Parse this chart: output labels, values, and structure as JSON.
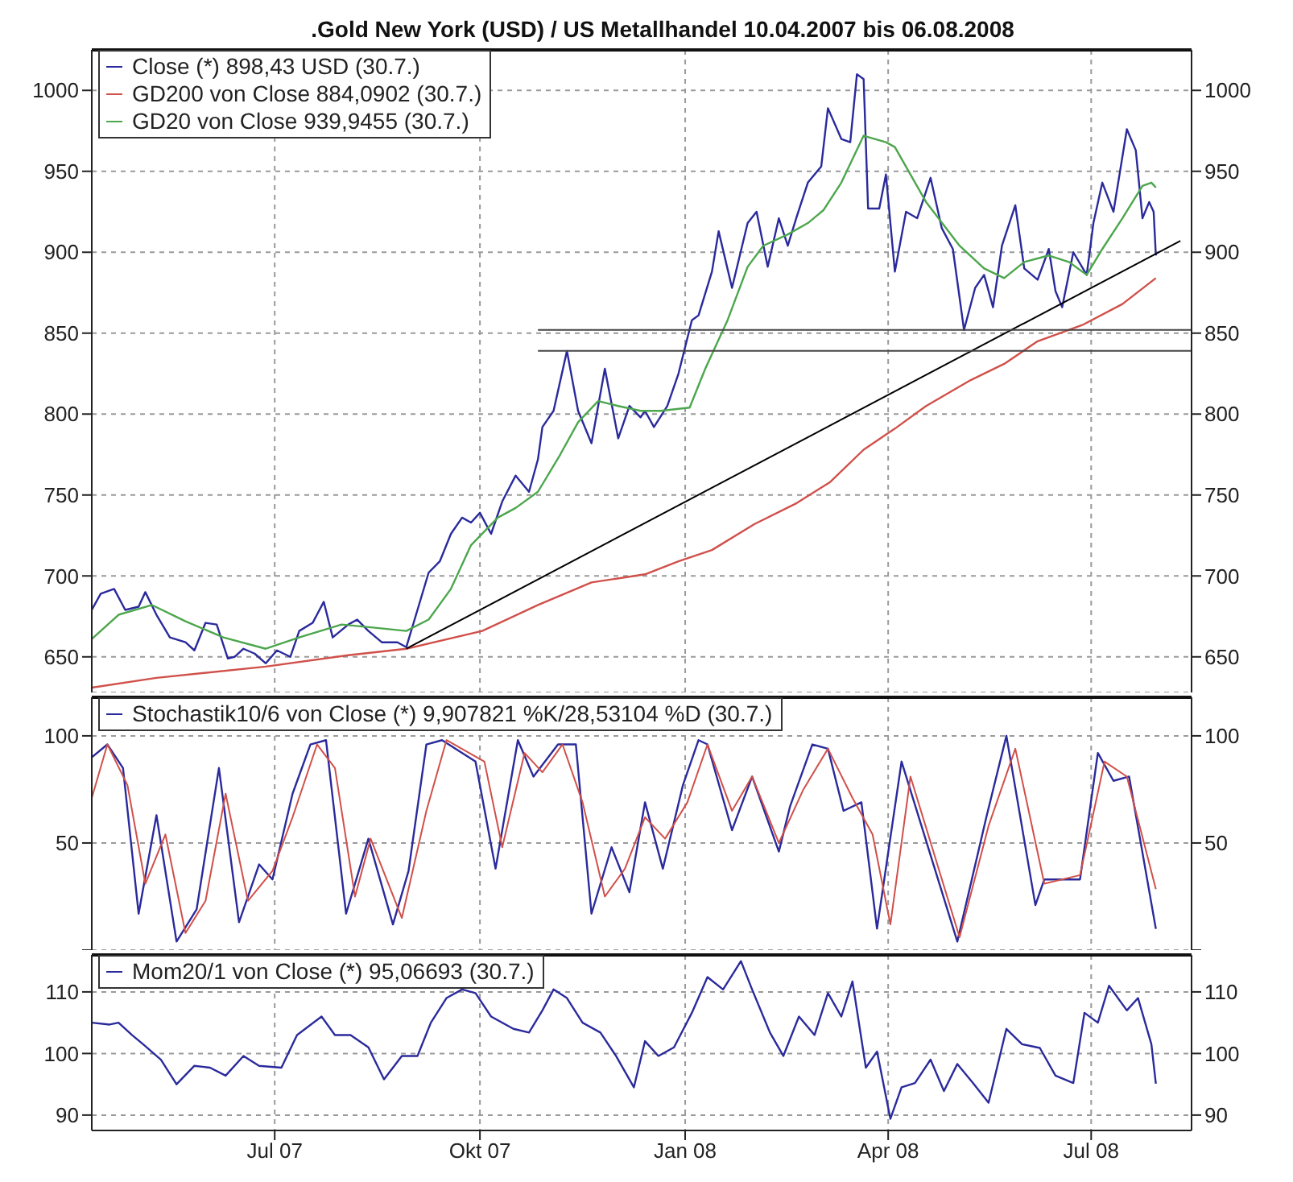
{
  "chart_data": [
    {
      "type": "line",
      "title": ".Gold New York (USD) / US Metallhandel 10.04.2007 bis 06.08.2008",
      "xlim": [
        "2007-04-10",
        "2008-08-15"
      ],
      "xticks": [
        {
          "value": "2007-07-01",
          "label": null
        },
        {
          "value": "2007-10-01",
          "label": null
        },
        {
          "value": "2008-01-01",
          "label": null
        },
        {
          "value": "2008-04-01",
          "label": null
        },
        {
          "value": "2008-07-01",
          "label": null
        }
      ],
      "ylim": [
        628,
        1025
      ],
      "yticks": [
        650,
        700,
        750,
        800,
        850,
        900,
        950,
        1000
      ],
      "y2lim": [
        628,
        1025
      ],
      "y2ticks": [
        650,
        700,
        750,
        800,
        850,
        900,
        950,
        1000
      ],
      "tick_labels": "y",
      "grid": true,
      "legend": "top left",
      "series": [
        {
          "name": "Close (*) 898,43 USD (30.7.)",
          "color": "#2a2a9c",
          "x": [
            "2007-04-10",
            "2007-04-14",
            "2007-04-20",
            "2007-04-25",
            "2007-05-01",
            "2007-05-04",
            "2007-05-09",
            "2007-05-15",
            "2007-05-22",
            "2007-05-26",
            "2007-05-31",
            "2007-06-05",
            "2007-06-10",
            "2007-06-13",
            "2007-06-17",
            "2007-06-22",
            "2007-06-27",
            "2007-07-02",
            "2007-07-08",
            "2007-07-12",
            "2007-07-18",
            "2007-07-23",
            "2007-07-27",
            "2007-08-03",
            "2007-08-07",
            "2007-08-12",
            "2007-08-18",
            "2007-08-25",
            "2007-08-29",
            "2007-09-03",
            "2007-09-08",
            "2007-09-13",
            "2007-09-18",
            "2007-09-23",
            "2007-09-27",
            "2007-10-01",
            "2007-10-06",
            "2007-10-11",
            "2007-10-17",
            "2007-10-23",
            "2007-10-27",
            "2007-10-29",
            "2007-11-03",
            "2007-11-09",
            "2007-11-14",
            "2007-11-20",
            "2007-11-26",
            "2007-12-02",
            "2007-12-07",
            "2007-12-12",
            "2007-12-14",
            "2007-12-18",
            "2007-12-24",
            "2007-12-29",
            "2008-01-04",
            "2008-01-07",
            "2008-01-13",
            "2008-01-16",
            "2008-01-22",
            "2008-01-29",
            "2008-02-02",
            "2008-02-07",
            "2008-02-12",
            "2008-02-16",
            "2008-02-20",
            "2008-02-25",
            "2008-03-02",
            "2008-03-05",
            "2008-03-11",
            "2008-03-15",
            "2008-03-18",
            "2008-03-21",
            "2008-03-23",
            "2008-03-28",
            "2008-03-31",
            "2008-04-04",
            "2008-04-09",
            "2008-04-14",
            "2008-04-20",
            "2008-04-25",
            "2008-04-30",
            "2008-05-05",
            "2008-05-10",
            "2008-05-14",
            "2008-05-18",
            "2008-05-22",
            "2008-05-28",
            "2008-06-01",
            "2008-06-07",
            "2008-06-12",
            "2008-06-15",
            "2008-06-18",
            "2008-06-23",
            "2008-06-29",
            "2008-07-02",
            "2008-07-06",
            "2008-07-11",
            "2008-07-17",
            "2008-07-21",
            "2008-07-24",
            "2008-07-27",
            "2008-07-29",
            "2008-07-30"
          ],
          "values": [
            679,
            689,
            692,
            679,
            681,
            690,
            676,
            662,
            659,
            654,
            671,
            670,
            649,
            650,
            655,
            652,
            646,
            654,
            650,
            666,
            671,
            684,
            662,
            670,
            673,
            666,
            659,
            659,
            656,
            679,
            702,
            709,
            726,
            736,
            733,
            739,
            726,
            746,
            762,
            752,
            772,
            792,
            802,
            839,
            802,
            782,
            828,
            785,
            805,
            798,
            802,
            792,
            805,
            825,
            858,
            861,
            888,
            913,
            878,
            918,
            925,
            891,
            921,
            904,
            922,
            943,
            953,
            989,
            970,
            968,
            1010,
            1007,
            927,
            927,
            948,
            888,
            925,
            921,
            946,
            915,
            902,
            852,
            878,
            886,
            866,
            904,
            929,
            890,
            883,
            902,
            876,
            866,
            900,
            886,
            918,
            943,
            925,
            976,
            963,
            921,
            931,
            925,
            898
          ]
        },
        {
          "name": "GD200 von Close 884,0902 (30.7.)",
          "color": "#d0504a",
          "x": [
            "2007-04-10",
            "2007-05-09",
            "2007-06-27",
            "2007-08-03",
            "2007-08-29",
            "2007-10-02",
            "2007-10-27",
            "2007-11-20",
            "2007-12-14",
            "2007-12-29",
            "2008-01-13",
            "2008-02-01",
            "2008-02-20",
            "2008-03-06",
            "2008-03-21",
            "2008-04-04",
            "2008-04-18",
            "2008-05-08",
            "2008-05-23",
            "2008-06-07",
            "2008-06-27",
            "2008-07-15",
            "2008-07-30"
          ],
          "values": [
            631,
            637,
            644,
            651,
            655,
            666,
            682,
            696,
            701,
            709,
            716,
            732,
            745,
            758,
            778,
            791,
            805,
            821,
            831,
            845,
            855,
            868,
            884
          ]
        },
        {
          "name": "GD20 von Close 939,9455 (30.7.)",
          "color": "#4ca64c",
          "x": [
            "2007-04-10",
            "2007-04-22",
            "2007-05-07",
            "2007-05-22",
            "2007-06-08",
            "2007-06-27",
            "2007-07-12",
            "2007-07-31",
            "2007-08-15",
            "2007-08-29",
            "2007-09-08",
            "2007-09-18",
            "2007-09-27",
            "2007-10-09",
            "2007-10-17",
            "2007-10-27",
            "2007-11-06",
            "2007-11-14",
            "2007-11-23",
            "2007-12-02",
            "2007-12-12",
            "2007-12-21",
            "2008-01-03",
            "2008-01-10",
            "2008-01-20",
            "2008-01-29",
            "2008-02-05",
            "2008-02-16",
            "2008-02-25",
            "2008-03-03",
            "2008-03-11",
            "2008-03-21",
            "2008-03-31",
            "2008-04-04",
            "2008-04-18",
            "2008-05-03",
            "2008-05-14",
            "2008-05-23",
            "2008-06-01",
            "2008-06-12",
            "2008-06-21",
            "2008-06-29",
            "2008-07-06",
            "2008-07-15",
            "2008-07-24",
            "2008-07-28",
            "2008-07-30"
          ],
          "values": [
            661,
            676,
            682,
            672,
            662,
            655,
            662,
            670,
            668,
            666,
            673,
            692,
            719,
            736,
            742,
            752,
            775,
            795,
            808,
            805,
            802,
            802,
            804,
            828,
            858,
            891,
            904,
            911,
            918,
            926,
            943,
            972,
            968,
            965,
            931,
            904,
            890,
            884,
            894,
            898,
            894,
            886,
            902,
            921,
            941,
            943,
            940
          ]
        },
        {
          "type": "line",
          "color": "#000000",
          "x": [
            "2007-08-29",
            "2008-08-10"
          ],
          "values": [
            655,
            907
          ]
        },
        {
          "type": "line",
          "color": "#444444",
          "x": [
            "2007-10-27",
            "2008-08-15"
          ],
          "values": [
            852,
            852
          ]
        },
        {
          "type": "line",
          "color": "#444444",
          "x": [
            "2007-10-27",
            "2008-08-15"
          ],
          "values": [
            839,
            839
          ]
        }
      ]
    },
    {
      "type": "line",
      "xlim": [
        "2007-04-10",
        "2008-08-15"
      ],
      "xticks": [
        {
          "value": "2007-07-01",
          "label": null
        },
        {
          "value": "2007-10-01",
          "label": null
        },
        {
          "value": "2008-01-01",
          "label": null
        },
        {
          "value": "2008-04-01",
          "label": null
        },
        {
          "value": "2008-07-01",
          "label": null
        }
      ],
      "ylim": [
        0,
        118
      ],
      "yticks": [
        {
          "value": 0,
          "label": null
        },
        50,
        100
      ],
      "y2lim": [
        0,
        118
      ],
      "y2ticks": [
        {
          "value": 0,
          "label": null
        },
        50,
        100
      ],
      "tick_labels": "y",
      "grid": true,
      "legend": "top left",
      "series": [
        {
          "name": "Stochastik10/6 von Close (*) 9,907821 %K/28,53104 %D (30.7.)",
          "color": "#2a2a9c",
          "x": [
            "2007-04-10",
            "2007-04-17",
            "2007-04-24",
            "2007-05-01",
            "2007-05-09",
            "2007-05-18",
            "2007-05-27",
            "2007-06-06",
            "2007-06-15",
            "2007-06-24",
            "2007-06-30",
            "2007-07-09",
            "2007-07-17",
            "2007-07-24",
            "2007-08-02",
            "2007-08-12",
            "2007-08-23",
            "2007-08-30",
            "2007-09-07",
            "2007-09-14",
            "2007-09-29",
            "2007-10-08",
            "2007-10-18",
            "2007-10-25",
            "2007-11-05",
            "2007-11-13",
            "2007-11-20",
            "2007-11-29",
            "2007-12-07",
            "2007-12-14",
            "2007-12-22",
            "2007-12-31",
            "2008-01-07",
            "2008-01-11",
            "2008-01-22",
            "2008-01-31",
            "2008-02-12",
            "2008-02-17",
            "2008-02-27",
            "2008-03-05",
            "2008-03-12",
            "2008-03-20",
            "2008-03-27",
            "2008-04-07",
            "2008-05-02",
            "2008-05-15",
            "2008-05-24",
            "2008-06-06",
            "2008-06-10",
            "2008-06-26",
            "2008-07-04",
            "2008-07-11",
            "2008-07-18",
            "2008-07-30"
          ],
          "values": [
            90,
            96,
            85,
            17,
            63,
            4,
            19,
            85,
            13,
            40,
            33,
            73,
            96,
            98,
            17,
            52,
            12,
            37,
            96,
            98,
            88,
            38,
            98,
            81,
            96,
            96,
            17,
            48,
            27,
            69,
            38,
            77,
            98,
            96,
            56,
            81,
            46,
            67,
            96,
            94,
            65,
            69,
            10,
            88,
            4,
            62,
            100,
            21,
            33,
            33,
            92,
            79,
            81,
            9.9
          ]
        },
        {
          "color": "#d0504a",
          "x": [
            "2007-04-10",
            "2007-04-17",
            "2007-04-26",
            "2007-05-04",
            "2007-05-13",
            "2007-05-22",
            "2007-05-31",
            "2007-06-09",
            "2007-06-19",
            "2007-06-30",
            "2007-07-09",
            "2007-07-20",
            "2007-07-28",
            "2007-08-06",
            "2007-08-13",
            "2007-08-27",
            "2007-09-07",
            "2007-09-16",
            "2007-10-03",
            "2007-10-11",
            "2007-10-21",
            "2007-10-29",
            "2007-11-07",
            "2007-11-16",
            "2007-11-26",
            "2007-12-05",
            "2007-12-14",
            "2007-12-23",
            "2008-01-02",
            "2008-01-11",
            "2008-01-22",
            "2008-01-31",
            "2008-02-12",
            "2008-02-23",
            "2008-03-05",
            "2008-03-16",
            "2008-03-25",
            "2008-04-02",
            "2008-04-11",
            "2008-05-03",
            "2008-05-16",
            "2008-05-28",
            "2008-06-10",
            "2008-06-26",
            "2008-07-07",
            "2008-07-17",
            "2008-07-30"
          ],
          "values": [
            71,
            96,
            77,
            31,
            54,
            8,
            23,
            73,
            23,
            37,
            62,
            96,
            85,
            25,
            52,
            15,
            65,
            98,
            88,
            48,
            92,
            83,
            96,
            69,
            25,
            38,
            62,
            52,
            69,
            96,
            65,
            81,
            50,
            75,
            94,
            71,
            54,
            12,
            81,
            6,
            58,
            94,
            31,
            35,
            88,
            81,
            28.5
          ]
        }
      ]
    },
    {
      "type": "line",
      "xlim": [
        "2007-04-10",
        "2008-08-15"
      ],
      "xticks": [
        {
          "value": "2007-07-01",
          "label": "Jul 07"
        },
        {
          "value": "2007-10-01",
          "label": "Okt 07"
        },
        {
          "value": "2008-01-01",
          "label": "Jan 08"
        },
        {
          "value": "2008-04-01",
          "label": "Apr 08"
        },
        {
          "value": "2008-07-01",
          "label": "Jul 08"
        }
      ],
      "ylim": [
        87.5,
        116
      ],
      "yticks": [
        90,
        100,
        110
      ],
      "y2lim": [
        87.5,
        116
      ],
      "y2ticks": [
        90,
        100,
        110
      ],
      "grid": true,
      "legend": "top left",
      "series": [
        {
          "name": "Mom20/1 von Close (*) 95,06693 (30.7.)",
          "color": "#2a2a9c",
          "x": [
            "2007-04-10",
            "2007-04-18",
            "2007-04-22",
            "2007-04-28",
            "2007-05-03",
            "2007-05-11",
            "2007-05-18",
            "2007-05-26",
            "2007-06-02",
            "2007-06-09",
            "2007-06-17",
            "2007-06-24",
            "2007-07-04",
            "2007-07-11",
            "2007-07-22",
            "2007-07-28",
            "2007-08-04",
            "2007-08-12",
            "2007-08-19",
            "2007-08-27",
            "2007-09-03",
            "2007-09-09",
            "2007-09-16",
            "2007-09-23",
            "2007-09-29",
            "2007-10-06",
            "2007-10-16",
            "2007-10-23",
            "2007-10-29",
            "2007-11-03",
            "2007-11-09",
            "2007-11-16",
            "2007-11-24",
            "2007-12-01",
            "2007-12-09",
            "2007-12-14",
            "2007-12-20",
            "2007-12-27",
            "2008-01-04",
            "2008-01-11",
            "2008-01-18",
            "2008-01-26",
            "2008-01-31",
            "2008-02-08",
            "2008-02-14",
            "2008-02-21",
            "2008-02-28",
            "2008-03-05",
            "2008-03-11",
            "2008-03-16",
            "2008-03-22",
            "2008-03-27",
            "2008-04-02",
            "2008-04-07",
            "2008-04-13",
            "2008-04-20",
            "2008-04-26",
            "2008-05-02",
            "2008-05-09",
            "2008-05-16",
            "2008-05-24",
            "2008-05-31",
            "2008-06-08",
            "2008-06-15",
            "2008-06-23",
            "2008-06-28",
            "2008-07-04",
            "2008-07-09",
            "2008-07-17",
            "2008-07-22",
            "2008-07-28",
            "2008-07-30"
          ],
          "values": [
            105,
            104.7,
            105,
            103,
            101.5,
            99,
            95,
            98,
            97.7,
            96.4,
            99.6,
            98,
            97.7,
            103,
            106,
            103,
            103,
            101,
            95.8,
            99.6,
            99.6,
            105,
            109,
            110.4,
            109.8,
            106,
            104,
            103.4,
            107,
            110.4,
            109,
            105,
            103.4,
            99.6,
            94.5,
            102,
            99.6,
            101,
            106.6,
            112.4,
            110.4,
            115,
            110.4,
            103.4,
            99.6,
            106,
            103,
            109.8,
            106,
            111.7,
            97.7,
            100.3,
            89.4,
            94.5,
            95.2,
            99,
            93.9,
            98.3,
            95.2,
            92,
            104,
            101.5,
            100.9,
            96.4,
            95.2,
            106.6,
            105,
            111,
            107,
            109,
            101.5,
            95.1
          ]
        }
      ]
    }
  ]
}
